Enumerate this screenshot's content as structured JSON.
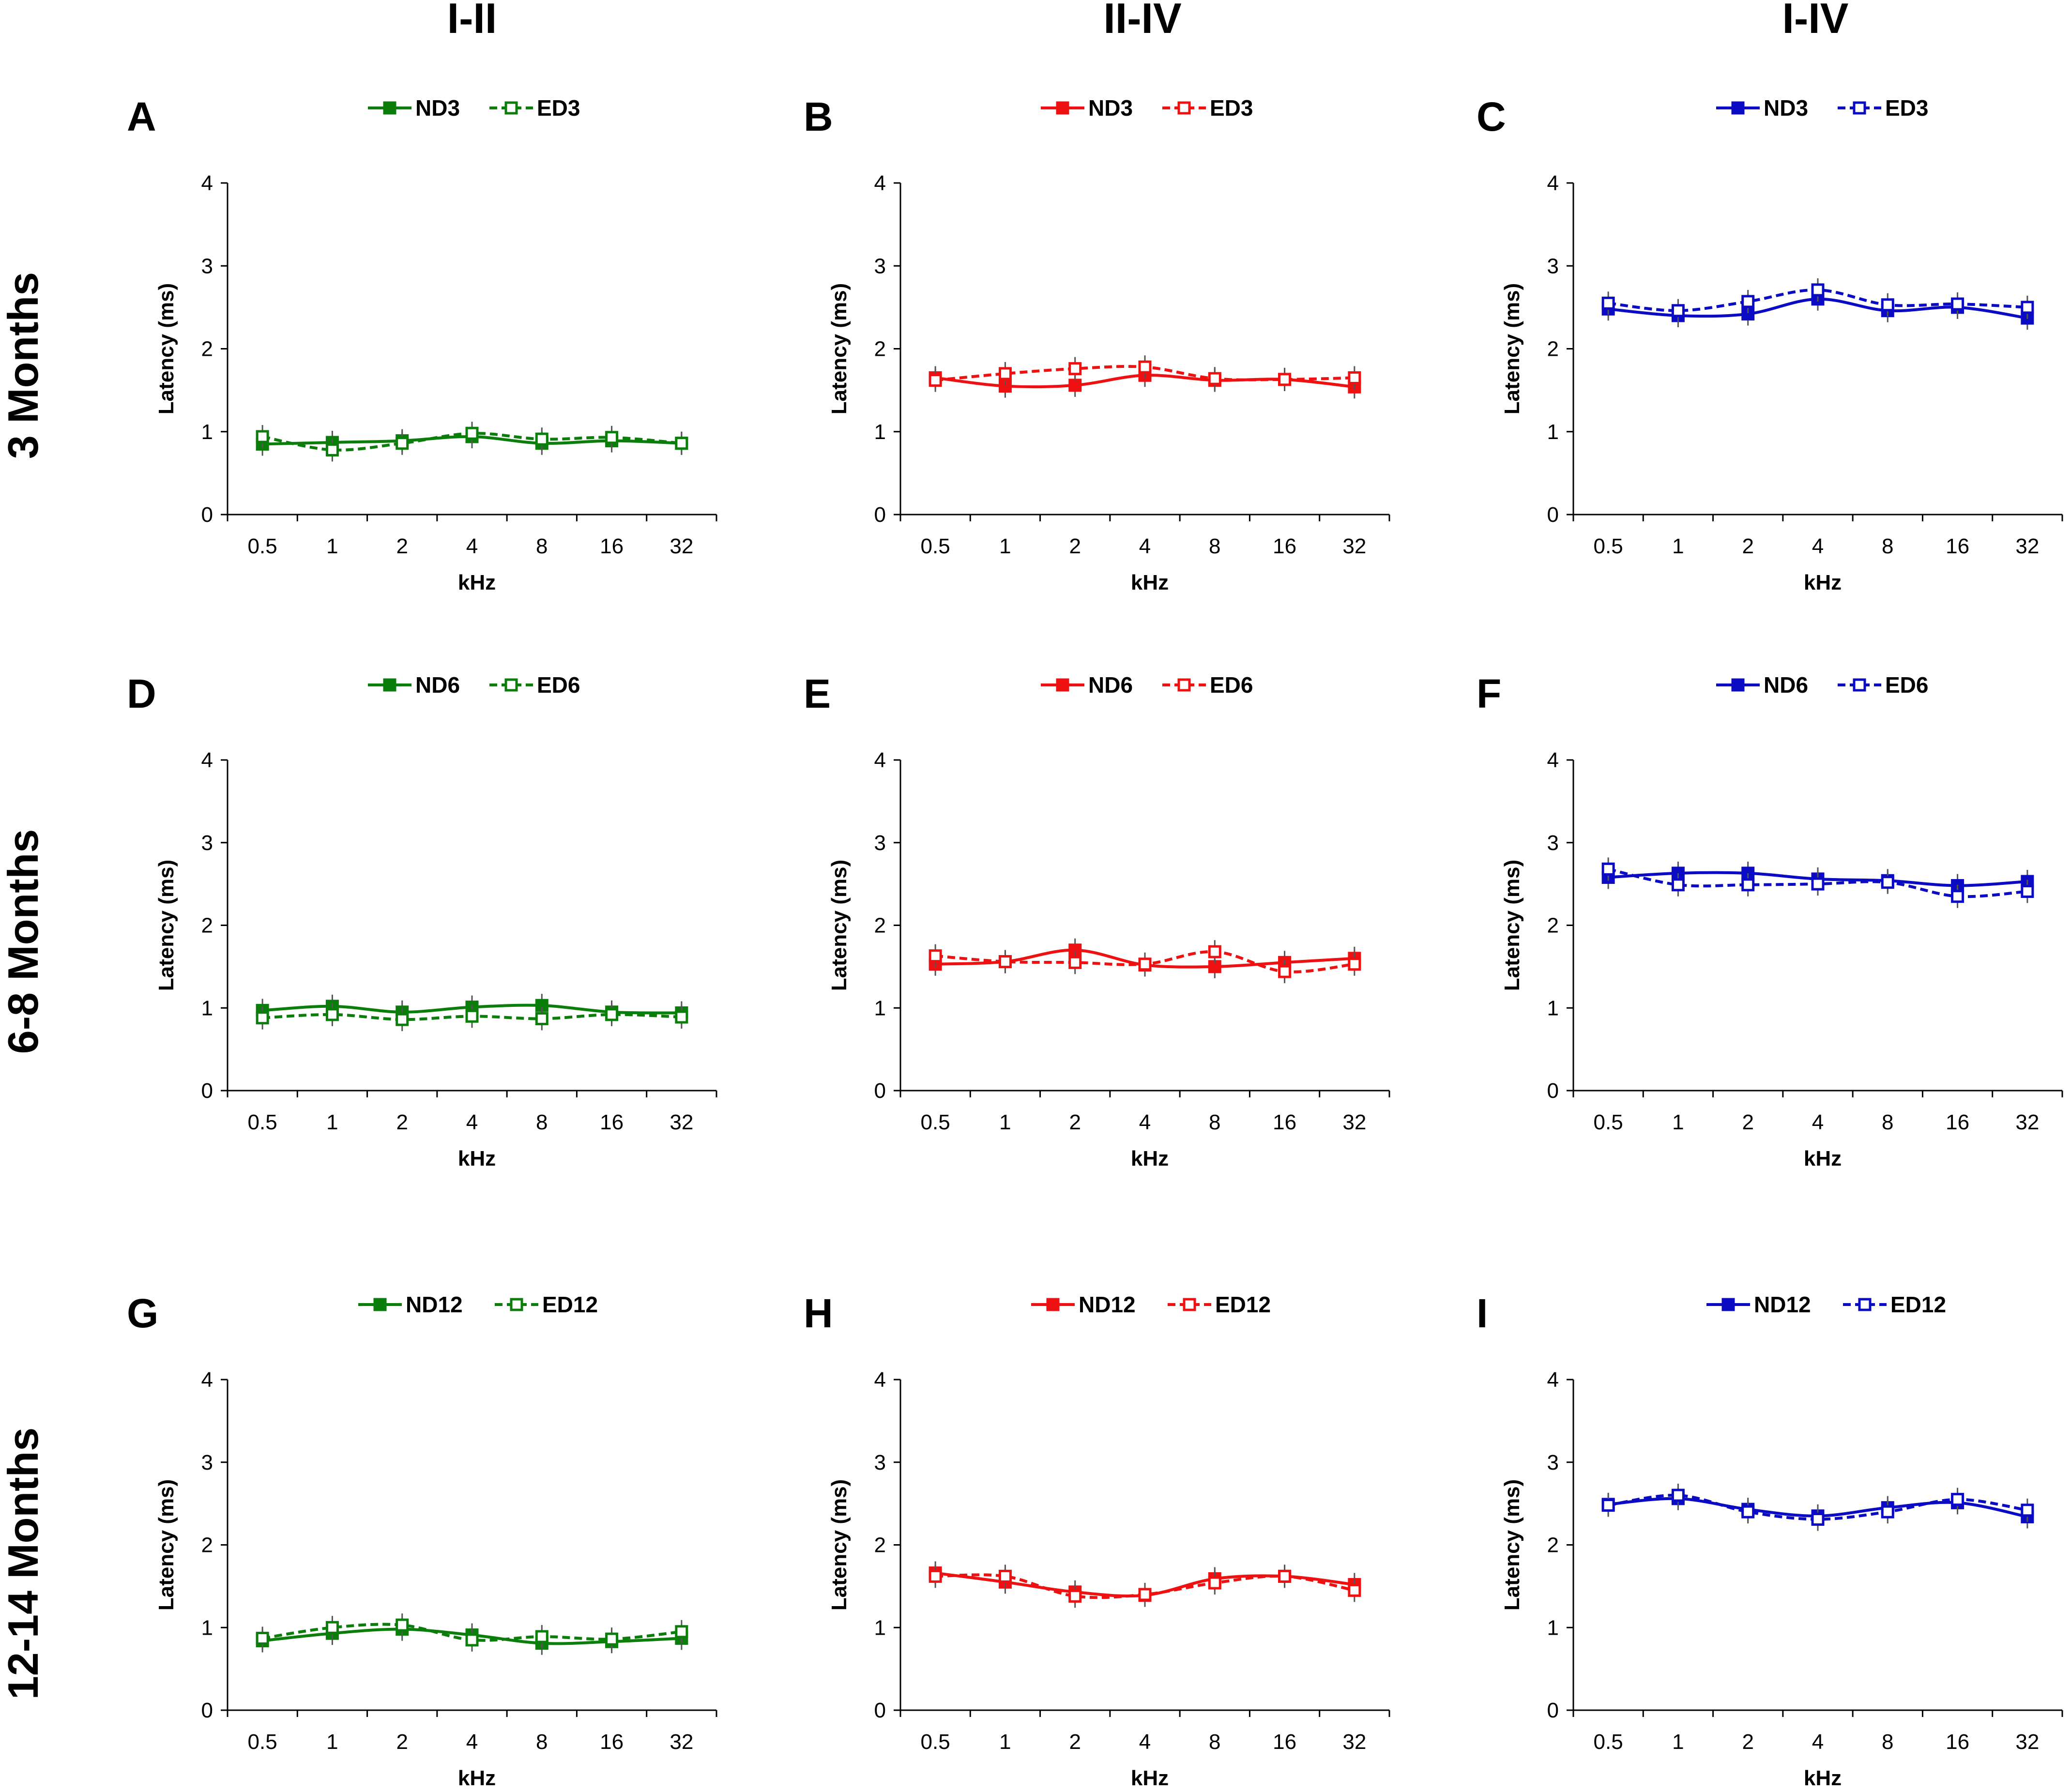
{
  "column_headers": [
    "I-II",
    "II-IV",
    "I-IV"
  ],
  "row_headers": [
    "3 Months",
    "6-8 Months",
    "12-14 Months"
  ],
  "colors": {
    "green": "#0a7d0a",
    "red": "#ee1111",
    "blue": "#0b0bc4",
    "axis": "#000000"
  },
  "chart_data": [
    {
      "type": "line",
      "panel": "A",
      "color": "green",
      "categories": [
        "0.5",
        "1",
        "2",
        "4",
        "8",
        "16",
        "32"
      ],
      "xlabel": "kHz",
      "ylabel": "Latency (ms)",
      "ylim": [
        0,
        4
      ],
      "yticks": [
        "0",
        "1",
        "2",
        "3",
        "4"
      ],
      "series": [
        {
          "name": "ND3",
          "style": "solid",
          "values": [
            0.85,
            0.87,
            0.89,
            0.94,
            0.86,
            0.89,
            0.86
          ]
        },
        {
          "name": "ED3",
          "style": "dashed",
          "values": [
            0.94,
            0.78,
            0.86,
            0.98,
            0.91,
            0.93,
            0.86
          ]
        }
      ]
    },
    {
      "type": "line",
      "panel": "B",
      "color": "red",
      "categories": [
        "0.5",
        "1",
        "2",
        "4",
        "8",
        "16",
        "32"
      ],
      "xlabel": "kHz",
      "ylabel": "Latency (ms)",
      "ylim": [
        0,
        4
      ],
      "yticks": [
        "0",
        "1",
        "2",
        "3",
        "4"
      ],
      "series": [
        {
          "name": "ND3",
          "style": "solid",
          "values": [
            1.65,
            1.55,
            1.56,
            1.68,
            1.62,
            1.63,
            1.54
          ]
        },
        {
          "name": "ED3",
          "style": "dashed",
          "values": [
            1.62,
            1.7,
            1.76,
            1.78,
            1.64,
            1.63,
            1.65
          ]
        }
      ]
    },
    {
      "type": "line",
      "panel": "C",
      "color": "blue",
      "categories": [
        "0.5",
        "1",
        "2",
        "4",
        "8",
        "16",
        "32"
      ],
      "xlabel": "kHz",
      "ylabel": "Latency (ms)",
      "ylim": [
        0,
        4
      ],
      "yticks": [
        "0",
        "1",
        "2",
        "3",
        "4"
      ],
      "series": [
        {
          "name": "ND3",
          "style": "solid",
          "values": [
            2.48,
            2.4,
            2.42,
            2.6,
            2.46,
            2.5,
            2.37
          ]
        },
        {
          "name": "ED3",
          "style": "dashed",
          "values": [
            2.55,
            2.46,
            2.57,
            2.71,
            2.53,
            2.54,
            2.5
          ]
        }
      ]
    },
    {
      "type": "line",
      "panel": "D",
      "color": "green",
      "categories": [
        "0.5",
        "1",
        "2",
        "4",
        "8",
        "16",
        "32"
      ],
      "xlabel": "kHz",
      "ylabel": "Latency (ms)",
      "ylim": [
        0,
        4
      ],
      "yticks": [
        "0",
        "1",
        "2",
        "3",
        "4"
      ],
      "series": [
        {
          "name": "ND6",
          "style": "solid",
          "values": [
            0.97,
            1.02,
            0.95,
            1.01,
            1.03,
            0.95,
            0.94
          ]
        },
        {
          "name": "ED6",
          "style": "dashed",
          "values": [
            0.88,
            0.92,
            0.86,
            0.9,
            0.87,
            0.92,
            0.89
          ]
        }
      ]
    },
    {
      "type": "line",
      "panel": "E",
      "color": "red",
      "categories": [
        "0.5",
        "1",
        "2",
        "4",
        "8",
        "16",
        "32"
      ],
      "xlabel": "kHz",
      "ylabel": "Latency (ms)",
      "ylim": [
        0,
        4
      ],
      "yticks": [
        "0",
        "1",
        "2",
        "3",
        "4"
      ],
      "series": [
        {
          "name": "ND6",
          "style": "solid",
          "values": [
            1.53,
            1.56,
            1.7,
            1.52,
            1.5,
            1.55,
            1.6
          ]
        },
        {
          "name": "ED6",
          "style": "dashed",
          "values": [
            1.63,
            1.56,
            1.55,
            1.53,
            1.68,
            1.44,
            1.53
          ]
        }
      ]
    },
    {
      "type": "line",
      "panel": "F",
      "color": "blue",
      "categories": [
        "0.5",
        "1",
        "2",
        "4",
        "8",
        "16",
        "32"
      ],
      "xlabel": "kHz",
      "ylabel": "Latency (ms)",
      "ylim": [
        0,
        4
      ],
      "yticks": [
        "0",
        "1",
        "2",
        "3",
        "4"
      ],
      "series": [
        {
          "name": "ND6",
          "style": "solid",
          "values": [
            2.58,
            2.63,
            2.63,
            2.56,
            2.54,
            2.48,
            2.53
          ]
        },
        {
          "name": "ED6",
          "style": "dashed",
          "values": [
            2.68,
            2.49,
            2.49,
            2.5,
            2.52,
            2.35,
            2.41
          ]
        }
      ]
    },
    {
      "type": "line",
      "panel": "G",
      "color": "green",
      "categories": [
        "0.5",
        "1",
        "2",
        "4",
        "8",
        "16",
        "32"
      ],
      "xlabel": "kHz",
      "ylabel": "Latency (ms)",
      "ylim": [
        0,
        4
      ],
      "yticks": [
        "0",
        "1",
        "2",
        "3",
        "4"
      ],
      "series": [
        {
          "name": "ND12",
          "style": "solid",
          "values": [
            0.84,
            0.93,
            0.98,
            0.91,
            0.81,
            0.83,
            0.87
          ]
        },
        {
          "name": "ED12",
          "style": "dashed",
          "values": [
            0.87,
            1.0,
            1.03,
            0.85,
            0.89,
            0.86,
            0.95
          ]
        }
      ]
    },
    {
      "type": "line",
      "panel": "H",
      "color": "red",
      "categories": [
        "0.5",
        "1",
        "2",
        "4",
        "8",
        "16",
        "32"
      ],
      "xlabel": "kHz",
      "ylabel": "Latency (ms)",
      "ylim": [
        0,
        4
      ],
      "yticks": [
        "0",
        "1",
        "2",
        "3",
        "4"
      ],
      "series": [
        {
          "name": "ND12",
          "style": "solid",
          "values": [
            1.66,
            1.55,
            1.43,
            1.39,
            1.59,
            1.62,
            1.52
          ]
        },
        {
          "name": "ED12",
          "style": "dashed",
          "values": [
            1.62,
            1.62,
            1.38,
            1.4,
            1.54,
            1.62,
            1.45
          ]
        }
      ]
    },
    {
      "type": "line",
      "panel": "I",
      "color": "blue",
      "categories": [
        "0.5",
        "1",
        "2",
        "4",
        "8",
        "16",
        "32"
      ],
      "xlabel": "kHz",
      "ylabel": "Latency (ms)",
      "ylim": [
        0,
        4
      ],
      "yticks": [
        "0",
        "1",
        "2",
        "3",
        "4"
      ],
      "series": [
        {
          "name": "ND12",
          "style": "solid",
          "values": [
            2.49,
            2.56,
            2.43,
            2.35,
            2.45,
            2.51,
            2.34
          ]
        },
        {
          "name": "ED12",
          "style": "dashed",
          "values": [
            2.48,
            2.6,
            2.4,
            2.31,
            2.4,
            2.55,
            2.42
          ]
        }
      ]
    }
  ]
}
